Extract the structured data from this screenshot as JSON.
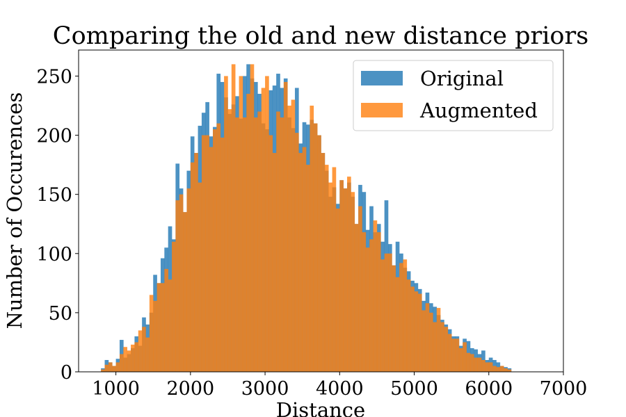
{
  "chart_data": {
    "type": "bar",
    "title": "Comparing the old and new distance priors",
    "xlabel": "Distance",
    "ylabel": "Number of Occurences",
    "xlim": [
      500,
      7000
    ],
    "ylim": [
      0,
      272
    ],
    "xticks": [
      "1000",
      "2000",
      "3000",
      "4000",
      "5000",
      "6000",
      "7000"
    ],
    "yticks": [
      "0",
      "50",
      "100",
      "150",
      "200",
      "250"
    ],
    "bin_start": 800,
    "bin_width": 50,
    "legend_position": "top-right",
    "grid": false,
    "series": [
      {
        "name": "Original",
        "color": "#1f77b4",
        "values": [
          3,
          10,
          8,
          5,
          11,
          27,
          12,
          15,
          20,
          30,
          22,
          46,
          40,
          50,
          82,
          75,
          96,
          105,
          123,
          112,
          176,
          155,
          135,
          170,
          199,
          185,
          208,
          219,
          228,
          199,
          207,
          252,
          245,
          232,
          218,
          226,
          233,
          214,
          250,
          260,
          248,
          245,
          235,
          210,
          205,
          238,
          242,
          252,
          240,
          248,
          215,
          206,
          240,
          193,
          211,
          209,
          213,
          210,
          200,
          185,
          170,
          148,
          156,
          142,
          162,
          155,
          160,
          148,
          125,
          158,
          152,
          120,
          140,
          118,
          125,
          110,
          145,
          108,
          90,
          110,
          100,
          88,
          85,
          77,
          75,
          70,
          60,
          67,
          58,
          55,
          48,
          44,
          40,
          36,
          30,
          30,
          22,
          28,
          26,
          20,
          19,
          15,
          18,
          10,
          12,
          10,
          8,
          5,
          4,
          3
        ],
        "alpha": 0.8
      },
      {
        "name": "Augmented",
        "color": "#ff7f0e",
        "values": [
          2,
          6,
          8,
          5,
          8,
          15,
          21,
          18,
          23,
          25,
          35,
          38,
          29,
          65,
          60,
          75,
          75,
          87,
          78,
          110,
          145,
          150,
          135,
          155,
          177,
          185,
          160,
          200,
          200,
          190,
          205,
          210,
          198,
          250,
          222,
          260,
          215,
          250,
          215,
          235,
          260,
          215,
          220,
          240,
          250,
          200,
          185,
          220,
          215,
          245,
          225,
          230,
          202,
          185,
          190,
          175,
          225,
          210,
          200,
          185,
          175,
          160,
          173,
          138,
          162,
          155,
          165,
          152,
          125,
          140,
          118,
          105,
          112,
          128,
          118,
          95,
          100,
          100,
          90,
          80,
          92,
          95,
          78,
          72,
          68,
          66,
          52,
          58,
          50,
          42,
          54,
          42,
          38,
          32,
          28,
          28,
          20,
          25,
          16,
          15,
          12,
          12,
          10,
          8,
          8,
          5,
          4,
          5,
          3,
          2
        ],
        "alpha": 0.8
      }
    ]
  }
}
